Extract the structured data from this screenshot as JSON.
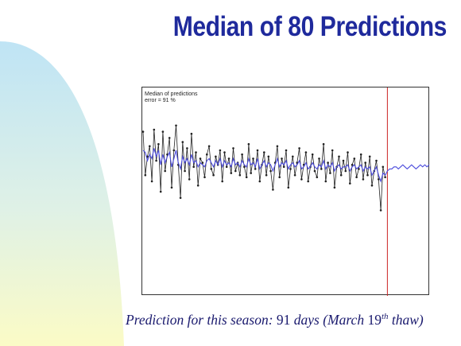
{
  "slide": {
    "title": "Median of 80 Predictions",
    "caption": {
      "prefix": "Prediction for this season: ",
      "days": "91",
      "middle": " days (March ",
      "day_of_month": "19",
      "ordinal_suffix": "th",
      "suffix": " thaw)"
    },
    "colors": {
      "title": "#1f2a9c",
      "caption": "#1a1a6e",
      "background_gradient": [
        "#bfe4f5",
        "#fbfbc6"
      ]
    }
  },
  "chart_data": {
    "type": "line",
    "annotation_lines": [
      "Median of predictions",
      "error = 91 %"
    ],
    "xlim": [
      0,
      130
    ],
    "ylim": [
      0,
      100
    ],
    "grid": false,
    "tick_labels": false,
    "vertical_marker": {
      "x": 111,
      "color": "#cc2222"
    },
    "series": [
      {
        "color": "#222222",
        "markers": true,
        "x": [
          0,
          1,
          2,
          3,
          4,
          5,
          6,
          7,
          8,
          9,
          10,
          11,
          12,
          13,
          14,
          15,
          16,
          17,
          18,
          19,
          20,
          21,
          22,
          23,
          24,
          25,
          26,
          27,
          28,
          29,
          30,
          31,
          32,
          33,
          34,
          35,
          36,
          37,
          38,
          39,
          40,
          41,
          42,
          43,
          44,
          45,
          46,
          47,
          48,
          49,
          50,
          51,
          52,
          53,
          54,
          55,
          56,
          57,
          58,
          59,
          60,
          61,
          62,
          63,
          64,
          65,
          66,
          67,
          68,
          69,
          70,
          71,
          72,
          73,
          74,
          75,
          76,
          77,
          78,
          79,
          80,
          81,
          82,
          83,
          84,
          85,
          86,
          87,
          88,
          89,
          90,
          91,
          92,
          93,
          94,
          95,
          96,
          97,
          98,
          99,
          100,
          101,
          102,
          103,
          104,
          105,
          106,
          107,
          108,
          109,
          110
        ],
        "y": [
          79,
          58,
          67,
          72,
          55,
          80,
          65,
          73,
          50,
          79,
          60,
          68,
          76,
          52,
          70,
          82,
          63,
          47,
          74,
          60,
          71,
          56,
          78,
          62,
          69,
          53,
          66,
          64,
          57,
          68,
          72,
          61,
          58,
          67,
          63,
          70,
          55,
          69,
          62,
          66,
          59,
          71,
          60,
          64,
          58,
          68,
          62,
          57,
          73,
          59,
          66,
          61,
          70,
          55,
          63,
          69,
          58,
          67,
          60,
          51,
          64,
          72,
          57,
          66,
          62,
          70,
          52,
          61,
          67,
          58,
          64,
          71,
          56,
          63,
          69,
          55,
          62,
          68,
          60,
          57,
          66,
          61,
          73,
          55,
          64,
          59,
          70,
          52,
          62,
          67,
          58,
          65,
          60,
          69,
          54,
          63,
          66,
          57,
          61,
          68,
          56,
          64,
          58,
          67,
          53,
          60,
          65,
          56,
          41,
          62,
          57
        ]
      },
      {
        "color": "#4a4adc",
        "markers": false,
        "x": [
          0,
          1,
          2,
          3,
          4,
          5,
          6,
          7,
          8,
          9,
          10,
          11,
          12,
          13,
          14,
          15,
          16,
          17,
          18,
          19,
          20,
          21,
          22,
          23,
          24,
          25,
          26,
          27,
          28,
          29,
          30,
          31,
          32,
          33,
          34,
          35,
          36,
          37,
          38,
          39,
          40,
          41,
          42,
          43,
          44,
          45,
          46,
          47,
          48,
          49,
          50,
          51,
          52,
          53,
          54,
          55,
          56,
          57,
          58,
          59,
          60,
          61,
          62,
          63,
          64,
          65,
          66,
          67,
          68,
          69,
          70,
          71,
          72,
          73,
          74,
          75,
          76,
          77,
          78,
          79,
          80,
          81,
          82,
          83,
          84,
          85,
          86,
          87,
          88,
          89,
          90,
          91,
          92,
          93,
          94,
          95,
          96,
          97,
          98,
          99,
          100,
          101,
          102,
          103,
          104,
          105,
          106,
          107,
          108,
          109,
          110,
          111,
          112,
          113,
          114,
          115,
          116,
          117,
          118,
          119,
          120,
          121,
          122,
          123,
          124,
          125,
          126,
          127,
          128,
          129,
          130
        ],
        "y": [
          70,
          69,
          65,
          68,
          66,
          71,
          67,
          70,
          63,
          68,
          64,
          67,
          69,
          62,
          66,
          70,
          64,
          61,
          67,
          64,
          66,
          63,
          68,
          64,
          65,
          62,
          64,
          63,
          62,
          65,
          66,
          64,
          62,
          65,
          63,
          66,
          62,
          65,
          63,
          64,
          62,
          66,
          63,
          64,
          62,
          65,
          63,
          62,
          66,
          63,
          64,
          62,
          66,
          61,
          63,
          65,
          62,
          64,
          63,
          60,
          63,
          66,
          62,
          64,
          63,
          65,
          61,
          63,
          64,
          62,
          63,
          65,
          61,
          62,
          64,
          61,
          62,
          64,
          62,
          61,
          63,
          62,
          65,
          61,
          63,
          62,
          64,
          60,
          62,
          63,
          61,
          62,
          62,
          63,
          60,
          62,
          63,
          61,
          62,
          63,
          60,
          62,
          61,
          62,
          58,
          60,
          62,
          58,
          55,
          59,
          58,
          60,
          61,
          61,
          62,
          62,
          61,
          62,
          63,
          62,
          61,
          62,
          63,
          62,
          61,
          62,
          63,
          62,
          63,
          62,
          63
        ]
      }
    ]
  }
}
